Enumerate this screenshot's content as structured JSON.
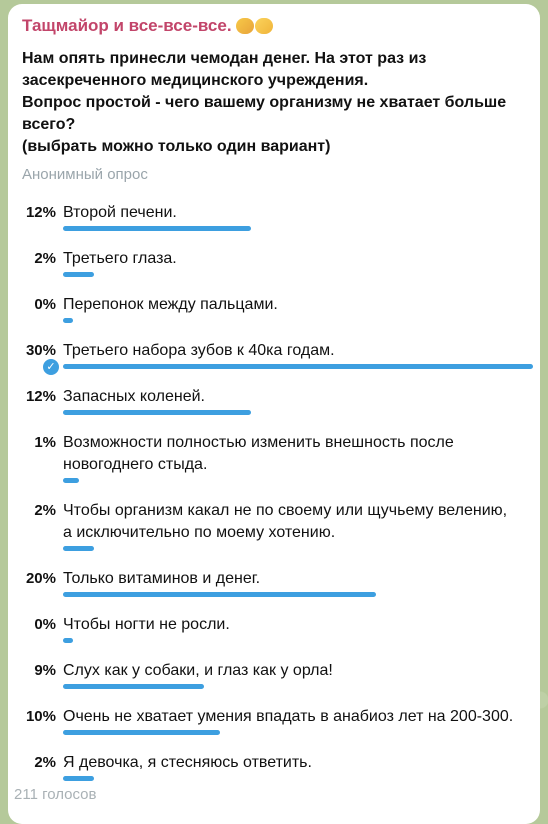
{
  "message": {
    "author": "Тащмайор и все-все-все.",
    "question_lines": [
      "Нам опять принесли чемодан денег. На этот раз из",
      "засекреченного медицинского учреждения.",
      "Вопрос простой - чего вашему организму не хватает больше",
      "всего?",
      "(выбрать можно только один вариант)"
    ],
    "poll_type": "Анонимный опрос",
    "votes": "211 голосов"
  },
  "options": [
    {
      "percent": "12%",
      "label": [
        "Второй печени."
      ],
      "value": 12,
      "chosen": false
    },
    {
      "percent": "2%",
      "label": [
        "Третьего глаза."
      ],
      "value": 2,
      "chosen": false
    },
    {
      "percent": "0%",
      "label": [
        "Перепонок между пальцами."
      ],
      "value": 0,
      "chosen": false
    },
    {
      "percent": "30%",
      "label": [
        "Третьего набора зубов к 40ка годам."
      ],
      "value": 30,
      "chosen": true
    },
    {
      "percent": "12%",
      "label": [
        "Запасных коленей."
      ],
      "value": 12,
      "chosen": false
    },
    {
      "percent": "1%",
      "label": [
        "Возможности полностью изменить внешность после",
        "новогоднего стыда."
      ],
      "value": 1,
      "chosen": false
    },
    {
      "percent": "2%",
      "label": [
        "Чтобы организм какал не по своему или щучьему велению,",
        "а исключительно по моему хотению."
      ],
      "value": 2,
      "chosen": false
    },
    {
      "percent": "20%",
      "label": [
        "Только витаминов и денег."
      ],
      "value": 20,
      "chosen": false
    },
    {
      "percent": "0%",
      "label": [
        "Чтобы ногти не росли."
      ],
      "value": 0,
      "chosen": false
    },
    {
      "percent": "9%",
      "label": [
        "Слух как у собаки, и глаз как у орла!"
      ],
      "value": 9,
      "chosen": false
    },
    {
      "percent": "10%",
      "label": [
        "Очень не хватает умения впадать в анабиоз лет на 200-300."
      ],
      "value": 10,
      "chosen": false
    },
    {
      "percent": "2%",
      "label": [
        "Я девочка, я стесняюсь ответить."
      ],
      "value": 2,
      "chosen": false
    }
  ],
  "colors": {
    "accent": "#3d9fe0",
    "author": "#c2456a"
  },
  "icons": {
    "chosen": "check-circle-icon"
  }
}
